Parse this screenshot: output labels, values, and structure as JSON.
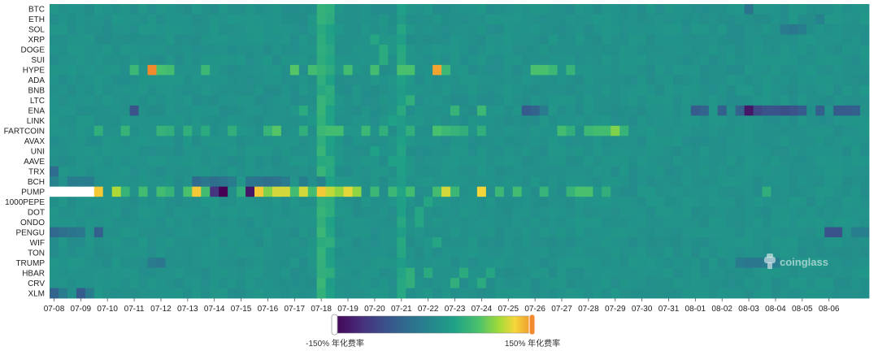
{
  "chart_data": {
    "type": "heatmap",
    "title": "",
    "xlabel": "",
    "ylabel": "",
    "rows": [
      "BTC",
      "ETH",
      "SOL",
      "XRP",
      "DOGE",
      "SUI",
      "HYPE",
      "ADA",
      "BNB",
      "LTC",
      "ENA",
      "LINK",
      "FARTCOIN",
      "AVAX",
      "UNI",
      "AAVE",
      "TRX",
      "BCH",
      "PUMP",
      "1000PEPE",
      "DOT",
      "ONDO",
      "PENGU",
      "WIF",
      "TON",
      "TRUMP",
      "HBAR",
      "CRV",
      "XLM"
    ],
    "x_ticks": [
      "07-08",
      "07-09",
      "07-10",
      "07-11",
      "07-12",
      "07-13",
      "07-14",
      "07-15",
      "07-16",
      "07-17",
      "07-18",
      "07-19",
      "07-20",
      "07-21",
      "07-22",
      "07-23",
      "07-24",
      "07-25",
      "07-26",
      "07-27",
      "07-28",
      "07-29",
      "07-30",
      "07-31",
      "08-01",
      "08-02",
      "08-03",
      "08-04",
      "08-05",
      "08-06"
    ],
    "periods_per_day": 3,
    "value_unit": "annualized funding rate (%)",
    "zlim": [
      -150,
      150
    ],
    "colorscale": "viridis",
    "default_value": 10,
    "missing": [
      {
        "row": "PUMP",
        "from": 0,
        "to": 4
      }
    ],
    "cells": [
      {
        "row": "HYPE",
        "col": 11,
        "v": 150
      },
      {
        "row": "HYPE",
        "col": 12,
        "v": 65
      },
      {
        "row": "HYPE",
        "col": 9,
        "v": 55
      },
      {
        "row": "HYPE",
        "col": 13,
        "v": 60
      },
      {
        "row": "HYPE",
        "col": 17,
        "v": 55
      },
      {
        "row": "HYPE",
        "col": 27,
        "v": 70
      },
      {
        "row": "HYPE",
        "col": 29,
        "v": 60
      },
      {
        "row": "HYPE",
        "col": 33,
        "v": 60
      },
      {
        "row": "HYPE",
        "col": 36,
        "v": 60
      },
      {
        "row": "HYPE",
        "col": 39,
        "v": 65
      },
      {
        "row": "HYPE",
        "col": 40,
        "v": 65
      },
      {
        "row": "HYPE",
        "col": 43,
        "v": 140
      },
      {
        "row": "HYPE",
        "col": 44,
        "v": 55
      },
      {
        "row": "HYPE",
        "col": 54,
        "v": 65
      },
      {
        "row": "HYPE",
        "col": 55,
        "v": 65
      },
      {
        "row": "HYPE",
        "col": 56,
        "v": 55
      },
      {
        "row": "HYPE",
        "col": 58,
        "v": 50
      },
      {
        "row": "ENA",
        "col": 9,
        "v": -70
      },
      {
        "row": "ENA",
        "col": 28,
        "v": 40
      },
      {
        "row": "ENA",
        "col": 45,
        "v": 50
      },
      {
        "row": "ENA",
        "col": 48,
        "v": 55
      },
      {
        "row": "ENA",
        "col": 53,
        "v": -60
      },
      {
        "row": "ENA",
        "col": 54,
        "v": -50
      },
      {
        "row": "ENA",
        "col": 55,
        "v": -20
      },
      {
        "row": "ENA",
        "col": 72,
        "v": -60
      },
      {
        "row": "ENA",
        "col": 73,
        "v": -50
      },
      {
        "row": "ENA",
        "col": 75,
        "v": -55
      },
      {
        "row": "ENA",
        "col": 77,
        "v": -50
      },
      {
        "row": "ENA",
        "col": 78,
        "v": -130
      },
      {
        "row": "ENA",
        "col": 79,
        "v": -80
      },
      {
        "row": "ENA",
        "col": 80,
        "v": -70
      },
      {
        "row": "ENA",
        "col": 81,
        "v": -70
      },
      {
        "row": "ENA",
        "col": 82,
        "v": -75
      },
      {
        "row": "ENA",
        "col": 83,
        "v": -70
      },
      {
        "row": "ENA",
        "col": 84,
        "v": -60
      },
      {
        "row": "ENA",
        "col": 86,
        "v": -55
      },
      {
        "row": "ENA",
        "col": 88,
        "v": -60
      },
      {
        "row": "ENA",
        "col": 89,
        "v": -60
      },
      {
        "row": "ENA",
        "col": 90,
        "v": -55
      },
      {
        "row": "FARTCOIN",
        "col": 5,
        "v": 45
      },
      {
        "row": "FARTCOIN",
        "col": 8,
        "v": 50
      },
      {
        "row": "FARTCOIN",
        "col": 12,
        "v": 50
      },
      {
        "row": "FARTCOIN",
        "col": 13,
        "v": 45
      },
      {
        "row": "FARTCOIN",
        "col": 15,
        "v": 45
      },
      {
        "row": "FARTCOIN",
        "col": 17,
        "v": 40
      },
      {
        "row": "FARTCOIN",
        "col": 20,
        "v": 45
      },
      {
        "row": "FARTCOIN",
        "col": 24,
        "v": 50
      },
      {
        "row": "FARTCOIN",
        "col": 25,
        "v": 70
      },
      {
        "row": "FARTCOIN",
        "col": 28,
        "v": 45
      },
      {
        "row": "FARTCOIN",
        "col": 30,
        "v": 55
      },
      {
        "row": "FARTCOIN",
        "col": 31,
        "v": 60
      },
      {
        "row": "FARTCOIN",
        "col": 32,
        "v": 60
      },
      {
        "row": "FARTCOIN",
        "col": 35,
        "v": 55
      },
      {
        "row": "FARTCOIN",
        "col": 37,
        "v": 45
      },
      {
        "row": "FARTCOIN",
        "col": 40,
        "v": 45
      },
      {
        "row": "FARTCOIN",
        "col": 43,
        "v": 65
      },
      {
        "row": "FARTCOIN",
        "col": 44,
        "v": 55
      },
      {
        "row": "FARTCOIN",
        "col": 45,
        "v": 50
      },
      {
        "row": "FARTCOIN",
        "col": 46,
        "v": 45
      },
      {
        "row": "FARTCOIN",
        "col": 48,
        "v": 45
      },
      {
        "row": "FARTCOIN",
        "col": 57,
        "v": 60
      },
      {
        "row": "FARTCOIN",
        "col": 58,
        "v": 45
      },
      {
        "row": "FARTCOIN",
        "col": 60,
        "v": 55
      },
      {
        "row": "FARTCOIN",
        "col": 61,
        "v": 60
      },
      {
        "row": "FARTCOIN",
        "col": 62,
        "v": 60
      },
      {
        "row": "FARTCOIN",
        "col": 63,
        "v": 85
      },
      {
        "row": "FARTCOIN",
        "col": 64,
        "v": 50
      },
      {
        "row": "PUMP",
        "col": 5,
        "v": 125
      },
      {
        "row": "PUMP",
        "col": 7,
        "v": 100
      },
      {
        "row": "PUMP",
        "col": 8,
        "v": 50
      },
      {
        "row": "PUMP",
        "col": 10,
        "v": 60
      },
      {
        "row": "PUMP",
        "col": 12,
        "v": 60
      },
      {
        "row": "PUMP",
        "col": 13,
        "v": 50
      },
      {
        "row": "PUMP",
        "col": 15,
        "v": 65
      },
      {
        "row": "PUMP",
        "col": 16,
        "v": 125
      },
      {
        "row": "PUMP",
        "col": 17,
        "v": 60
      },
      {
        "row": "PUMP",
        "col": 18,
        "v": -100
      },
      {
        "row": "PUMP",
        "col": 19,
        "v": -150
      },
      {
        "row": "PUMP",
        "col": 21,
        "v": 45
      },
      {
        "row": "PUMP",
        "col": 22,
        "v": -130
      },
      {
        "row": "PUMP",
        "col": 23,
        "v": 125
      },
      {
        "row": "PUMP",
        "col": 24,
        "v": 85
      },
      {
        "row": "PUMP",
        "col": 25,
        "v": 110
      },
      {
        "row": "PUMP",
        "col": 26,
        "v": 110
      },
      {
        "row": "PUMP",
        "col": 27,
        "v": 60
      },
      {
        "row": "PUMP",
        "col": 28,
        "v": 110
      },
      {
        "row": "PUMP",
        "col": 29,
        "v": 60
      },
      {
        "row": "PUMP",
        "col": 30,
        "v": 125
      },
      {
        "row": "PUMP",
        "col": 31,
        "v": 105
      },
      {
        "row": "PUMP",
        "col": 32,
        "v": 90
      },
      {
        "row": "PUMP",
        "col": 33,
        "v": 115
      },
      {
        "row": "PUMP",
        "col": 34,
        "v": 90
      },
      {
        "row": "PUMP",
        "col": 36,
        "v": 55
      },
      {
        "row": "PUMP",
        "col": 38,
        "v": 55
      },
      {
        "row": "PUMP",
        "col": 40,
        "v": 60
      },
      {
        "row": "PUMP",
        "col": 43,
        "v": 60
      },
      {
        "row": "PUMP",
        "col": 44,
        "v": 110
      },
      {
        "row": "PUMP",
        "col": 45,
        "v": 55
      },
      {
        "row": "PUMP",
        "col": 48,
        "v": 120
      },
      {
        "row": "PUMP",
        "col": 50,
        "v": 55
      },
      {
        "row": "PUMP",
        "col": 52,
        "v": 60
      },
      {
        "row": "PUMP",
        "col": 55,
        "v": 50
      },
      {
        "row": "PUMP",
        "col": 58,
        "v": 50
      },
      {
        "row": "PUMP",
        "col": 59,
        "v": 65
      },
      {
        "row": "PUMP",
        "col": 60,
        "v": 65
      },
      {
        "row": "PUMP",
        "col": 62,
        "v": 45
      },
      {
        "row": "PUMP",
        "col": 80,
        "v": 45
      },
      {
        "row": "BCH",
        "col": 0,
        "v": -10
      },
      {
        "row": "BCH",
        "col": 2,
        "v": -20
      },
      {
        "row": "BCH",
        "col": 3,
        "v": -15
      },
      {
        "row": "BCH",
        "col": 4,
        "v": -20
      },
      {
        "row": "BCH",
        "col": 16,
        "v": -40
      },
      {
        "row": "BCH",
        "col": 17,
        "v": -25
      },
      {
        "row": "BCH",
        "col": 18,
        "v": -35
      },
      {
        "row": "BCH",
        "col": 19,
        "v": -30
      },
      {
        "row": "BCH",
        "col": 20,
        "v": -20
      },
      {
        "row": "BCH",
        "col": 22,
        "v": -25
      },
      {
        "row": "BCH",
        "col": 23,
        "v": -30
      },
      {
        "row": "BCH",
        "col": 24,
        "v": -35
      },
      {
        "row": "BCH",
        "col": 25,
        "v": -30
      },
      {
        "row": "BCH",
        "col": 26,
        "v": -20
      },
      {
        "row": "BCH",
        "col": 28,
        "v": -15
      },
      {
        "row": "BCH",
        "col": 30,
        "v": -10
      },
      {
        "row": "PENGU",
        "col": 0,
        "v": -45
      },
      {
        "row": "PENGU",
        "col": 1,
        "v": -35
      },
      {
        "row": "PENGU",
        "col": 2,
        "v": -30
      },
      {
        "row": "PENGU",
        "col": 3,
        "v": -25
      },
      {
        "row": "PENGU",
        "col": 5,
        "v": -55
      },
      {
        "row": "PENGU",
        "col": 87,
        "v": -70
      },
      {
        "row": "PENGU",
        "col": 88,
        "v": -70
      },
      {
        "row": "PENGU",
        "col": 90,
        "v": -15
      },
      {
        "row": "PENGU",
        "col": 91,
        "v": -15
      },
      {
        "row": "XLM",
        "col": 0,
        "v": -50
      },
      {
        "row": "XLM",
        "col": 1,
        "v": -20
      },
      {
        "row": "XLM",
        "col": 3,
        "v": -60
      },
      {
        "row": "XLM",
        "col": 4,
        "v": -20
      },
      {
        "row": "TRX",
        "col": 0,
        "v": -40
      },
      {
        "row": "TRUMP",
        "col": 11,
        "v": -20
      },
      {
        "row": "TRUMP",
        "col": 12,
        "v": -25
      },
      {
        "row": "TRUMP",
        "col": 77,
        "v": -20
      },
      {
        "row": "TRUMP",
        "col": 78,
        "v": -25
      },
      {
        "row": "TRUMP",
        "col": 79,
        "v": -25
      },
      {
        "row": "TRUMP",
        "col": 80,
        "v": -20
      },
      {
        "row": "TRUMP",
        "col": 81,
        "v": -20
      },
      {
        "row": "SOL",
        "col": 82,
        "v": -20
      },
      {
        "row": "SOL",
        "col": 83,
        "v": -25
      },
      {
        "row": "SOL",
        "col": 84,
        "v": -15
      },
      {
        "row": "ETH",
        "col": 86,
        "v": -10
      },
      {
        "row": "BTC",
        "col": 78,
        "v": -30
      },
      {
        "row": "CRV",
        "col": 40,
        "v": 45
      },
      {
        "row": "CRV",
        "col": 45,
        "v": 45
      },
      {
        "row": "CRV",
        "col": 48,
        "v": 40
      },
      {
        "row": "HBAR",
        "col": 40,
        "v": 45
      },
      {
        "row": "HBAR",
        "col": 42,
        "v": 40
      },
      {
        "row": "HBAR",
        "col": 46,
        "v": 40
      },
      {
        "row": "HBAR",
        "col": 49,
        "v": 35
      },
      {
        "row": "DOT",
        "col": 41,
        "v": 35
      },
      {
        "row": "ONDO",
        "col": 41,
        "v": 35
      },
      {
        "row": "1000PEPE",
        "col": 42,
        "v": 35
      },
      {
        "row": "WIF",
        "col": 43,
        "v": 35
      },
      {
        "row": "LTC",
        "col": 40,
        "v": 45
      },
      {
        "row": "DOGE",
        "col": 37,
        "v": 40
      },
      {
        "row": "SUI",
        "col": 37,
        "v": 40
      },
      {
        "row": "XRP",
        "col": 36,
        "v": 35
      },
      {
        "row": "UNI",
        "col": 36,
        "v": 30
      },
      {
        "row": "AAVE",
        "col": 38,
        "v": 30
      },
      {
        "row": "AVAX",
        "col": 39,
        "v": 30
      },
      {
        "row": "LINK",
        "col": 38,
        "v": 30
      }
    ],
    "hot_columns": [
      {
        "col": 30,
        "v": 45
      },
      {
        "col": 31,
        "v": 35
      },
      {
        "col": 39,
        "v": 30
      }
    ],
    "colorbar": {
      "min_label": "-150% 年化费率",
      "max_label": "150% 年化费率"
    },
    "legend_position": "bottom-center",
    "grid": false
  },
  "watermark": {
    "text": "coinglass",
    "icon": "coinglass-logo-icon"
  }
}
